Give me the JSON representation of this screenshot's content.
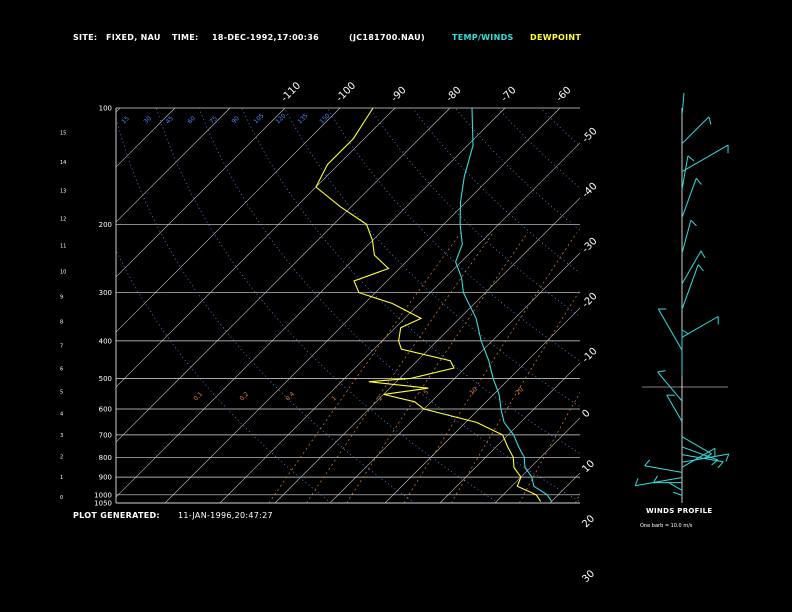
{
  "header": {
    "site_label": "SITE:",
    "site_value": "FIXED, NAU",
    "time_label": "TIME:",
    "time_value": "18-DEC-1992,17:00:36",
    "file_id": "(JC181700.NAU)",
    "temp_legend": "TEMP/WINDS",
    "dew_legend": "DEWPOINT"
  },
  "footer": {
    "generated_label": "PLOT GENERATED:",
    "generated_value": "11-JAN-1996,20:47:27"
  },
  "colors": {
    "background": "#000000",
    "temperature": "#33dddd",
    "dewpoint": "#ffff33",
    "mixing_ratio": "#e08040",
    "dry_adiabat": "#5588ff",
    "grid": "#ffffff"
  },
  "winds_panel": {
    "title": "WINDS PROFILE",
    "note": "One barb = 10.0 m/s"
  },
  "chart_data": {
    "type": "line",
    "subtype": "skew-T log-P sounding",
    "pressure_levels": [
      100,
      200,
      300,
      400,
      500,
      600,
      700,
      800,
      900,
      1000,
      1050
    ],
    "height_km_ticks": [
      0,
      1,
      2,
      3,
      4,
      5,
      6,
      7,
      8,
      9,
      10,
      11,
      12,
      13,
      14,
      15
    ],
    "isotherm_labels": [
      -110,
      -100,
      -90,
      -80,
      -70,
      -60,
      -50,
      -40,
      -30,
      -20,
      -10,
      0,
      10,
      20,
      30
    ],
    "theta_labels": [
      15,
      30,
      45,
      60,
      75,
      90,
      105,
      120,
      135,
      150
    ],
    "mixing_ratio_labels": [
      0.1,
      0.2,
      0.4,
      1.0,
      2.0,
      5.0,
      10.0,
      20.0
    ],
    "series": [
      {
        "name": "TEMP/WINDS",
        "color": "#33dddd",
        "points": [
          [
            1040,
            10
          ],
          [
            1000,
            8
          ],
          [
            950,
            4
          ],
          [
            900,
            2
          ],
          [
            850,
            -1
          ],
          [
            800,
            -3
          ],
          [
            750,
            -6
          ],
          [
            700,
            -9
          ],
          [
            650,
            -13
          ],
          [
            600,
            -16
          ],
          [
            550,
            -19
          ],
          [
            500,
            -23
          ],
          [
            450,
            -27
          ],
          [
            400,
            -32
          ],
          [
            350,
            -37
          ],
          [
            300,
            -44
          ],
          [
            275,
            -47
          ],
          [
            250,
            -51
          ],
          [
            225,
            -53
          ],
          [
            200,
            -57
          ],
          [
            175,
            -61
          ],
          [
            150,
            -65
          ],
          [
            125,
            -69
          ],
          [
            100,
            -76
          ]
        ]
      },
      {
        "name": "DEWPOINT",
        "color": "#ffff33",
        "points": [
          [
            1040,
            8
          ],
          [
            1000,
            6
          ],
          [
            950,
            1
          ],
          [
            900,
            0
          ],
          [
            850,
            -3
          ],
          [
            800,
            -5
          ],
          [
            750,
            -8
          ],
          [
            700,
            -11
          ],
          [
            650,
            -18
          ],
          [
            600,
            -30
          ],
          [
            575,
            -33
          ],
          [
            550,
            -40
          ],
          [
            530,
            -33
          ],
          [
            510,
            -45
          ],
          [
            500,
            -38
          ],
          [
            470,
            -32
          ],
          [
            450,
            -34
          ],
          [
            420,
            -45
          ],
          [
            400,
            -47
          ],
          [
            370,
            -49
          ],
          [
            350,
            -47
          ],
          [
            320,
            -55
          ],
          [
            300,
            -63
          ],
          [
            280,
            -66
          ],
          [
            260,
            -62
          ],
          [
            240,
            -67
          ],
          [
            220,
            -70
          ],
          [
            200,
            -74
          ],
          [
            180,
            -82
          ],
          [
            160,
            -90
          ],
          [
            140,
            -92
          ],
          [
            120,
            -92
          ],
          [
            100,
            -94
          ]
        ]
      }
    ],
    "winds": [
      {
        "height_km": 0.3,
        "dir": 290,
        "speed": 5
      },
      {
        "height_km": 0.5,
        "dir": 300,
        "speed": 8
      },
      {
        "height_km": 0.8,
        "dir": 270,
        "speed": 15
      },
      {
        "height_km": 1.0,
        "dir": 260,
        "speed": 25
      },
      {
        "height_km": 1.2,
        "dir": 280,
        "speed": 20
      },
      {
        "height_km": 1.4,
        "dir": 60,
        "speed": 20
      },
      {
        "height_km": 1.6,
        "dir": 80,
        "speed": 25
      },
      {
        "height_km": 1.9,
        "dir": 100,
        "speed": 22
      },
      {
        "height_km": 2.2,
        "dir": 110,
        "speed": 20
      },
      {
        "height_km": 2.6,
        "dir": 120,
        "speed": 18
      },
      {
        "height_km": 3.2,
        "dir": 330,
        "speed": 16
      },
      {
        "height_km": 4.0,
        "dir": 320,
        "speed": 20
      },
      {
        "height_km": 5.0,
        "dir": 0,
        "speed": 24
      },
      {
        "height_km": 6.0,
        "dir": 330,
        "speed": 25
      },
      {
        "height_km": 6.5,
        "dir": 60,
        "speed": 22
      },
      {
        "height_km": 7.6,
        "dir": 20,
        "speed": 25
      },
      {
        "height_km": 8.6,
        "dir": 30,
        "speed": 20
      },
      {
        "height_km": 9.8,
        "dir": 15,
        "speed": 18
      },
      {
        "height_km": 11.2,
        "dir": 20,
        "speed": 22
      },
      {
        "height_km": 12.3,
        "dir": 10,
        "speed": 18
      },
      {
        "height_km": 13.0,
        "dir": 60,
        "speed": 28
      },
      {
        "height_km": 14.1,
        "dir": 45,
        "speed": 20
      },
      {
        "height_km": 15.2,
        "dir": 5,
        "speed": 12
      }
    ]
  }
}
